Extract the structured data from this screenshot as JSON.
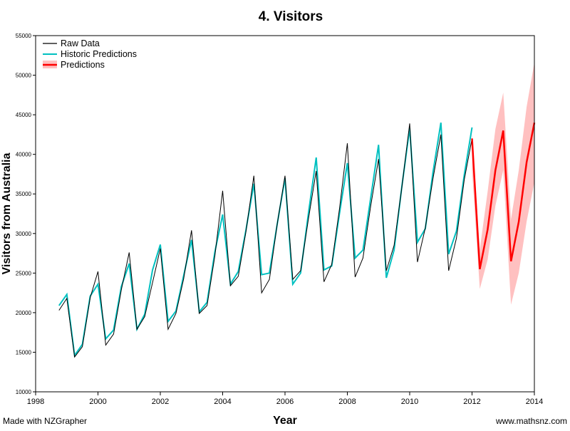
{
  "footer": {
    "left": "Made with NZGrapher",
    "right": "www.mathsnz.com"
  },
  "chart_data": {
    "type": "line",
    "title": "4. Visitors",
    "xlabel": "Year",
    "ylabel": "Visitors from Australia",
    "xlim": [
      1998,
      2014
    ],
    "ylim": [
      10000,
      55000
    ],
    "x_ticks": [
      "1998",
      "2000",
      "2002",
      "2004",
      "2006",
      "2008",
      "2010",
      "2012",
      "2014"
    ],
    "y_ticks": [
      "10000",
      "15000",
      "20000",
      "25000",
      "30000",
      "35000",
      "40000",
      "45000",
      "50000",
      "55000"
    ],
    "grid": false,
    "legend": {
      "position": "top-left",
      "entries": [
        "Raw Data",
        "Historic Predictions",
        "Predictions"
      ]
    },
    "colors": {
      "raw": "#000000",
      "historic": "#00c0c0",
      "prediction": "#ff0000",
      "band": "#ffc0c0"
    },
    "series": [
      {
        "name": "Raw Data",
        "x": [
          1998.75,
          1999.0,
          1999.25,
          1999.5,
          1999.75,
          2000.0,
          2000.25,
          2000.5,
          2000.75,
          2001.0,
          2001.25,
          2001.5,
          2001.75,
          2002.0,
          2002.25,
          2002.5,
          2002.75,
          2003.0,
          2003.25,
          2003.5,
          2003.75,
          2004.0,
          2004.25,
          2004.5,
          2004.75,
          2005.0,
          2005.25,
          2005.5,
          2005.75,
          2006.0,
          2006.25,
          2006.5,
          2006.75,
          2007.0,
          2007.25,
          2007.5,
          2007.75,
          2008.0,
          2008.25,
          2008.5,
          2008.75,
          2009.0,
          2009.25,
          2009.5,
          2009.75,
          2010.0,
          2010.25,
          2010.5,
          2010.75,
          2011.0,
          2011.25,
          2011.5,
          2011.75,
          2012.0
        ],
        "y": [
          20300,
          21800,
          14400,
          15700,
          21900,
          25200,
          15900,
          17300,
          22900,
          27600,
          17900,
          19500,
          23800,
          28100,
          17900,
          19900,
          24300,
          30400,
          19900,
          20900,
          27200,
          35400,
          23400,
          24600,
          30300,
          37300,
          22500,
          24200,
          31200,
          37300,
          24200,
          25300,
          31800,
          37900,
          23900,
          26100,
          33200,
          41400,
          24500,
          26900,
          33500,
          39400,
          25300,
          28500,
          35900,
          43900,
          26400,
          30700,
          37000,
          42500,
          25300,
          29400,
          36800,
          42000
        ]
      },
      {
        "name": "Historic Predictions",
        "x": [
          1998.75,
          1999.0,
          1999.25,
          1999.5,
          1999.75,
          2000.0,
          2000.25,
          2000.5,
          2000.75,
          2001.0,
          2001.25,
          2001.5,
          2001.75,
          2002.0,
          2002.25,
          2002.5,
          2002.75,
          2003.0,
          2003.25,
          2003.5,
          2003.75,
          2004.0,
          2004.25,
          2004.5,
          2004.75,
          2005.0,
          2005.25,
          2005.5,
          2005.75,
          2006.0,
          2006.25,
          2006.5,
          2006.75,
          2007.0,
          2007.25,
          2007.5,
          2007.75,
          2008.0,
          2008.25,
          2008.5,
          2008.75,
          2009.0,
          2009.25,
          2009.5,
          2009.75,
          2010.0,
          2010.25,
          2010.5,
          2010.75,
          2011.0,
          2011.25,
          2011.5,
          2011.75,
          2012.0
        ],
        "y": [
          20900,
          22300,
          14600,
          16000,
          22100,
          23600,
          16700,
          17800,
          23300,
          26200,
          17900,
          19800,
          25400,
          28600,
          18900,
          20200,
          24700,
          29200,
          20100,
          21300,
          27700,
          32400,
          23600,
          25200,
          30500,
          36300,
          24800,
          25000,
          31200,
          37000,
          23600,
          25000,
          32500,
          39600,
          25400,
          25900,
          32600,
          38900,
          26900,
          27900,
          34500,
          41200,
          24400,
          27900,
          36000,
          43300,
          28900,
          30600,
          37800,
          44000,
          27400,
          30300,
          37400,
          43400
        ]
      },
      {
        "name": "Predictions",
        "x": [
          2012.0,
          2012.25,
          2012.5,
          2012.75,
          2013.0,
          2013.25,
          2013.5,
          2013.75,
          2014.0
        ],
        "y": [
          42000,
          25500,
          30500,
          38000,
          43000,
          26500,
          31500,
          39000,
          44000
        ],
        "lower": [
          38000,
          23000,
          26700,
          33500,
          38000,
          21000,
          25000,
          31500,
          36500
        ],
        "upper": [
          42700,
          28000,
          35300,
          43200,
          47800,
          31800,
          38000,
          46000,
          51600
        ]
      }
    ]
  }
}
